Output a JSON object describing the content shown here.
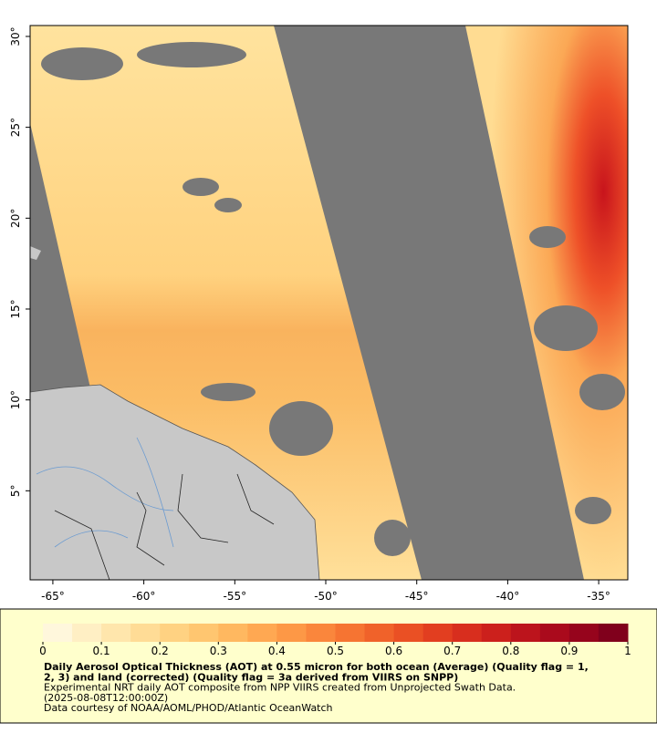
{
  "map": {
    "xlim": [
      -66.25,
      -33.4
    ],
    "ylim": [
      0.1,
      30.6
    ],
    "xticks": [
      {
        "value": -65,
        "label": "-65°"
      },
      {
        "value": -60,
        "label": "-60°"
      },
      {
        "value": -55,
        "label": "-55°"
      },
      {
        "value": -50,
        "label": "-50°"
      },
      {
        "value": -45,
        "label": "-45°"
      },
      {
        "value": -40,
        "label": "-40°"
      },
      {
        "value": -35,
        "label": "-35°"
      }
    ],
    "yticks": [
      {
        "value": 30,
        "label": "30°"
      },
      {
        "value": 25,
        "label": "25°"
      },
      {
        "value": 20,
        "label": "20°"
      },
      {
        "value": 15,
        "label": "15°"
      },
      {
        "value": 10,
        "label": "10°"
      },
      {
        "value": 5,
        "label": "5°"
      }
    ],
    "colorbar": {
      "lim": [
        0,
        1
      ],
      "ticks": [
        0,
        0.1,
        0.2,
        0.3,
        0.4,
        0.5,
        0.6,
        0.7,
        0.8,
        0.9,
        1
      ],
      "colors": [
        "#fff7dc",
        "#ffefc4",
        "#ffe6ac",
        "#ffdc96",
        "#ffd282",
        "#ffc670",
        "#ffb860",
        "#ffa852",
        "#fd9846",
        "#fa863c",
        "#f67432",
        "#f0622a",
        "#ea5024",
        "#e23e20",
        "#d82e1e",
        "#cc201c",
        "#bc141c",
        "#aa0a1c",
        "#96041c",
        "#80001c"
      ]
    },
    "title_lines": [
      "Daily Aerosol Optical Thickness (AOT) at 0.55 micron for both ocean (Average) (Quality flag = 1,",
      "2, 3) and land (corrected) (Quality flag = 3a derived from VIIRS on SNPP)"
    ],
    "notes": [
      "Experimental NRT daily AOT composite from NPP VIIRS created from Unprojected Swath Data.",
      "(2025-08-08T12:00:00Z)",
      "Data courtesy of NOAA/AOML/PHOD/Atlantic OceanWatch"
    ]
  }
}
